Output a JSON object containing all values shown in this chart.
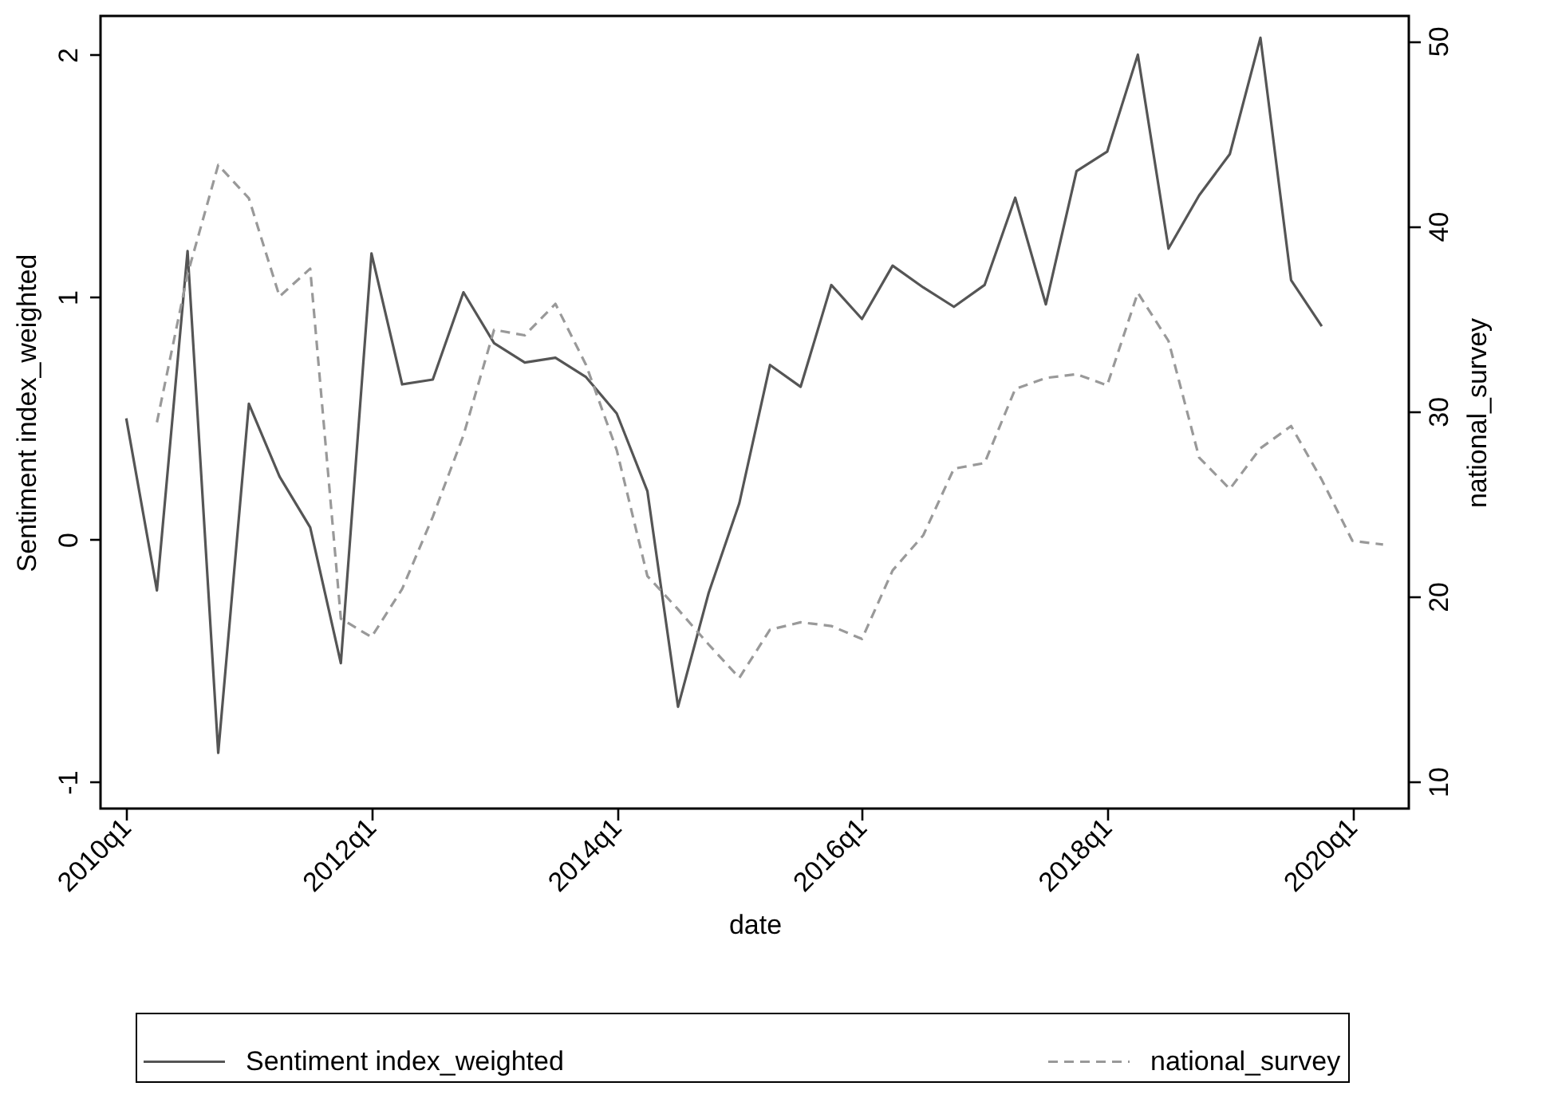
{
  "chart_data": {
    "type": "line",
    "xlabel": "date",
    "ylabel": "Sentiment index_weighted",
    "y2label": "national_survey",
    "categories": [
      "2010q1",
      null,
      null,
      null,
      null,
      null,
      null,
      null,
      "2012q1",
      null,
      null,
      null,
      null,
      null,
      null,
      null,
      "2014q1",
      null,
      null,
      null,
      null,
      null,
      null,
      null,
      "2016q1",
      null,
      null,
      null,
      null,
      null,
      null,
      null,
      "2018q1",
      null,
      null,
      null,
      null,
      null,
      null,
      null,
      "2020q1",
      null
    ],
    "ylim": [
      -1.11,
      2.16
    ],
    "yticks": [
      -1,
      0,
      1,
      2
    ],
    "y2lim": [
      8.54,
      51.35
    ],
    "y2ticks": [
      10,
      20,
      30,
      40,
      50
    ],
    "legend": "bottom",
    "series": [
      {
        "name": "Sentiment index_weighted",
        "color": "#555555",
        "line_style": "solid",
        "values": [
          0.5,
          -0.21,
          1.19,
          -0.88,
          0.56,
          0.26,
          0.05,
          -0.51,
          1.18,
          0.64,
          0.66,
          1.02,
          0.81,
          0.73,
          0.75,
          0.67,
          0.52,
          0.2,
          -0.69,
          -0.22,
          0.15,
          0.72,
          0.63,
          1.05,
          0.91,
          1.13,
          1.04,
          0.96,
          1.05,
          1.41,
          0.97,
          1.52,
          1.6,
          2.0,
          1.2,
          1.42,
          1.59,
          2.07,
          1.07,
          0.88,
          null,
          null
        ]
      },
      {
        "name": "national_survey",
        "color": "#999999",
        "line_style": "dashed",
        "axis": "y2",
        "values": [
          null,
          29.4,
          37.4,
          43.3,
          41.5,
          36.2,
          37.7,
          18.8,
          17.8,
          20.4,
          24.3,
          28.7,
          34.4,
          34.1,
          35.8,
          32.5,
          27.9,
          21.1,
          19.3,
          17.4,
          15.6,
          18.2,
          18.6,
          18.4,
          17.7,
          21.4,
          23.3,
          26.9,
          27.2,
          31.2,
          31.8,
          32.0,
          31.4,
          36.4,
          33.8,
          27.5,
          25.8,
          28.0,
          29.2,
          26.3,
          23.0,
          22.8
        ]
      }
    ]
  }
}
